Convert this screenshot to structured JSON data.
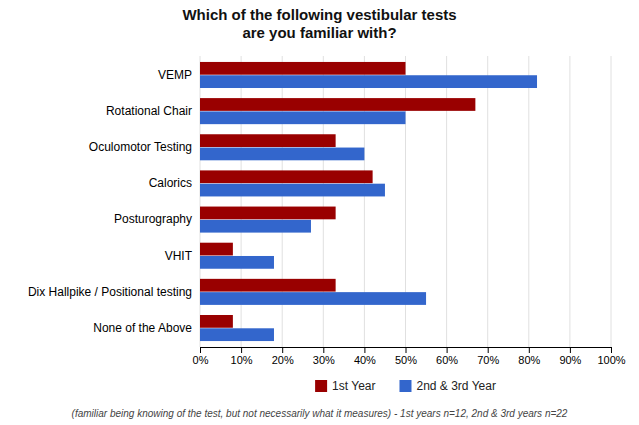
{
  "chart_data": {
    "type": "bar",
    "orientation": "horizontal",
    "title": "Which of the following vestibular tests\nare you familiar with?",
    "categories": [
      "VEMP",
      "Rotational Chair",
      "Oculomotor Testing",
      "Calorics",
      "Posturography",
      "VHIT",
      "Dix Hallpike / Positional testing",
      "None of the Above"
    ],
    "series": [
      {
        "name": "1st Year",
        "color": "#990000",
        "values": [
          0.5,
          0.67,
          0.33,
          0.42,
          0.33,
          0.08,
          0.33,
          0.08
        ]
      },
      {
        "name": "2nd & 3rd Year",
        "color": "#3366CC",
        "values": [
          0.82,
          0.5,
          0.4,
          0.45,
          0.27,
          0.18,
          0.55,
          0.18
        ]
      }
    ],
    "xlim": [
      0,
      1.0
    ],
    "xticks": [
      {
        "value": 0.0,
        "label": "0%"
      },
      {
        "value": 0.1,
        "label": "10%"
      },
      {
        "value": 0.2,
        "label": "20%"
      },
      {
        "value": 0.3,
        "label": "30%"
      },
      {
        "value": 0.4,
        "label": "40%"
      },
      {
        "value": 0.5,
        "label": "50%"
      },
      {
        "value": 0.6,
        "label": "60%"
      },
      {
        "value": 0.7,
        "label": "70%"
      },
      {
        "value": 0.8,
        "label": "80%"
      },
      {
        "value": 0.9,
        "label": "90%"
      },
      {
        "value": 1.0,
        "label": "100%"
      }
    ],
    "grid": true,
    "legend": "bottom",
    "annotations": [
      "(familiar being knowing of the test, but not necessarily what it measures) - 1st years n=12, 2nd & 3rd years n=22"
    ]
  }
}
